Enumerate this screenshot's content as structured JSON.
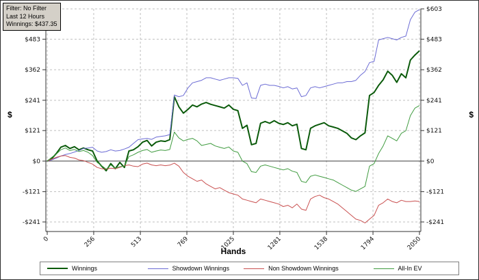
{
  "info_box": {
    "filter": "Filter: No Filter",
    "session": "Last 12 Hours",
    "winnings": "Winnings: $437.35"
  },
  "chart_data": {
    "type": "line",
    "title": "",
    "xlabel": "Hands",
    "ylabel": "$",
    "ylabel_right": "$",
    "xlim": [
      0,
      2050
    ],
    "ylim": [
      -241,
      603
    ],
    "grid": true,
    "legend_position": "bottom",
    "xticks": [
      0,
      256,
      513,
      769,
      1025,
      1281,
      1538,
      1794,
      2050
    ],
    "yticks": [
      603,
      483,
      362,
      241,
      121,
      0,
      -121,
      -241
    ],
    "ytick_labels": [
      "$603",
      "$483",
      "$362",
      "$241",
      "$121",
      "$0",
      "-$121",
      "-$241"
    ],
    "x": [
      0,
      25,
      50,
      75,
      100,
      125,
      150,
      175,
      200,
      225,
      250,
      275,
      300,
      325,
      350,
      375,
      400,
      425,
      450,
      475,
      500,
      525,
      550,
      575,
      600,
      625,
      650,
      675,
      700,
      725,
      750,
      775,
      800,
      825,
      850,
      875,
      900,
      925,
      950,
      975,
      1000,
      1025,
      1050,
      1075,
      1100,
      1125,
      1150,
      1175,
      1200,
      1225,
      1250,
      1275,
      1300,
      1325,
      1350,
      1375,
      1400,
      1425,
      1450,
      1475,
      1500,
      1525,
      1550,
      1575,
      1600,
      1625,
      1650,
      1675,
      1700,
      1725,
      1750,
      1775,
      1800,
      1825,
      1850,
      1875,
      1900,
      1925,
      1950,
      1975,
      2000,
      2025,
      2050
    ],
    "series": [
      {
        "name": "Winnings",
        "color": "#0a5a0a",
        "width": 2,
        "values": [
          0,
          10,
          30,
          55,
          62,
          50,
          57,
          45,
          52,
          45,
          40,
          0,
          -20,
          -38,
          -10,
          -30,
          -5,
          -25,
          40,
          45,
          57,
          75,
          82,
          60,
          75,
          80,
          78,
          85,
          255,
          215,
          190,
          205,
          222,
          215,
          226,
          232,
          225,
          220,
          215,
          210,
          222,
          205,
          200,
          130,
          142,
          65,
          70,
          150,
          157,
          150,
          160,
          150,
          145,
          152,
          140,
          146,
          50,
          45,
          130,
          140,
          146,
          152,
          140,
          135,
          130,
          120,
          110,
          92,
          85,
          100,
          112,
          260,
          272,
          300,
          322,
          356,
          340,
          312,
          346,
          330,
          400,
          420,
          437
        ]
      },
      {
        "name": "Showdown Winnings",
        "color": "#6a6ad4",
        "width": 1,
        "values": [
          0,
          5,
          12,
          20,
          26,
          30,
          36,
          42,
          50,
          52,
          55,
          40,
          35,
          38,
          45,
          40,
          42,
          48,
          55,
          70,
          85,
          88,
          90,
          86,
          95,
          98,
          100,
          105,
          262,
          255,
          260,
          290,
          310,
          315,
          320,
          330,
          330,
          325,
          320,
          325,
          330,
          330,
          328,
          300,
          310,
          250,
          248,
          300,
          305,
          300,
          300,
          296,
          290,
          295,
          286,
          290,
          255,
          260,
          290,
          295,
          290,
          295,
          300,
          305,
          310,
          310,
          315,
          315,
          320,
          340,
          355,
          390,
          395,
          480,
          485,
          490,
          485,
          480,
          490,
          495,
          560,
          590,
          600
        ]
      },
      {
        "name": "Non Showdown Winnings",
        "color": "#c94f4f",
        "width": 1,
        "values": [
          0,
          8,
          15,
          20,
          22,
          15,
          12,
          5,
          2,
          -5,
          -12,
          -25,
          -30,
          -32,
          -28,
          -30,
          -25,
          -18,
          -15,
          -20,
          -22,
          -12,
          -8,
          -15,
          -18,
          -15,
          -18,
          -16,
          -8,
          -20,
          -45,
          -60,
          -70,
          -80,
          -75,
          -90,
          -100,
          -110,
          -105,
          -115,
          -125,
          -130,
          -135,
          -150,
          -155,
          -160,
          -165,
          -150,
          -155,
          -160,
          -165,
          -170,
          -180,
          -175,
          -185,
          -170,
          -190,
          -195,
          -150,
          -140,
          -135,
          -145,
          -150,
          -160,
          -170,
          -185,
          -200,
          -215,
          -230,
          -235,
          -245,
          -230,
          -215,
          -175,
          -165,
          -150,
          -160,
          -165,
          -155,
          -160,
          -160,
          -158,
          -160
        ]
      },
      {
        "name": "All-In EV",
        "color": "#3f9b3f",
        "width": 1,
        "values": [
          0,
          15,
          28,
          45,
          52,
          42,
          46,
          38,
          42,
          35,
          22,
          -5,
          -18,
          -32,
          -15,
          -28,
          -22,
          -20,
          18,
          25,
          35,
          42,
          46,
          35,
          40,
          44,
          42,
          46,
          115,
          92,
          80,
          86,
          90,
          80,
          62,
          66,
          70,
          60,
          55,
          50,
          56,
          40,
          35,
          0,
          -10,
          -42,
          -45,
          -20,
          -15,
          -20,
          -25,
          -30,
          -35,
          -30,
          -40,
          -45,
          -80,
          -85,
          -60,
          -55,
          -60,
          -65,
          -70,
          -75,
          -85,
          -95,
          -105,
          -115,
          -120,
          -110,
          -100,
          -20,
          -10,
          30,
          60,
          100,
          90,
          80,
          110,
          120,
          180,
          210,
          220
        ]
      }
    ]
  }
}
